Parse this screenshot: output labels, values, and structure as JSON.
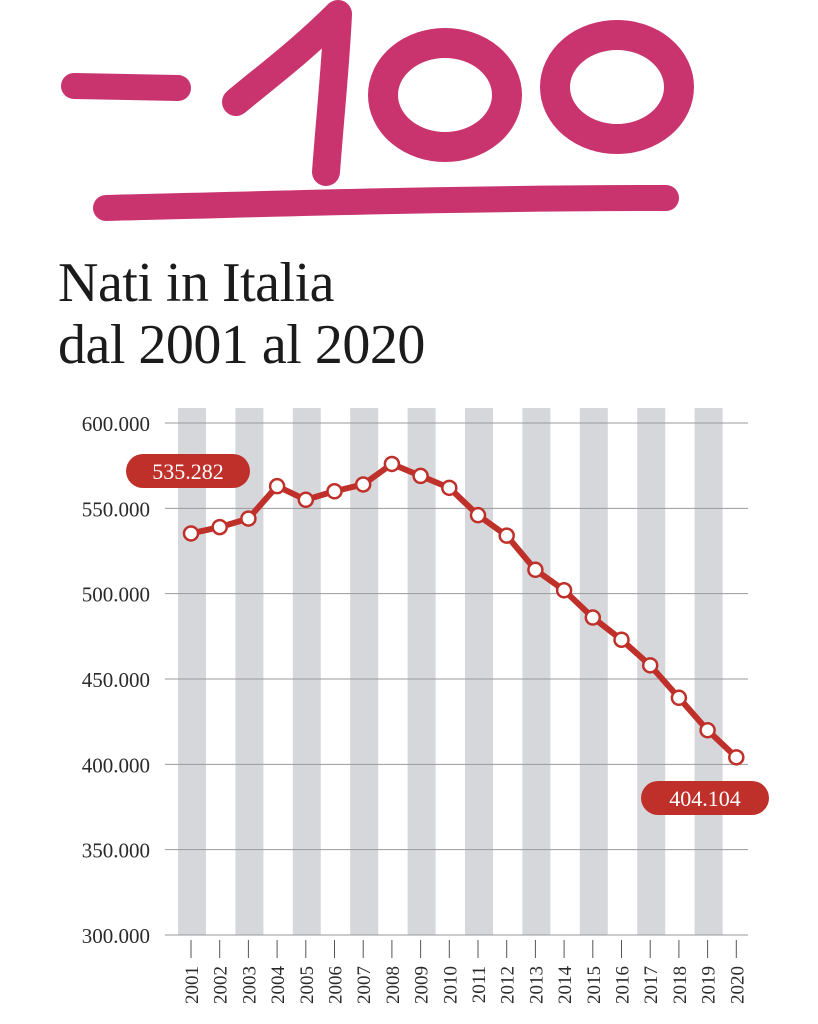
{
  "annotation": {
    "text": "-100",
    "color": "#c2185b"
  },
  "title": {
    "line1": "Nati in Italia",
    "line2": "dal 2001 al 2020"
  },
  "chart_data": {
    "type": "line",
    "title": "Nati in Italia dal 2001 al 2020",
    "xlabel": "",
    "ylabel": "",
    "x": [
      "2001",
      "2002",
      "2003",
      "2004",
      "2005",
      "2006",
      "2007",
      "2008",
      "2009",
      "2010",
      "2011",
      "2012",
      "2013",
      "2014",
      "2015",
      "2016",
      "2017",
      "2018",
      "2019",
      "2020"
    ],
    "series": [
      {
        "values": [
          535282,
          539000,
          544000,
          563000,
          555000,
          560000,
          564000,
          576000,
          569000,
          562000,
          546000,
          534000,
          514000,
          502000,
          486000,
          473000,
          458000,
          439000,
          420000,
          404104
        ]
      }
    ],
    "ylim": [
      300000,
      600000
    ],
    "yticks": [
      300000,
      350000,
      400000,
      450000,
      500000,
      550000,
      600000
    ],
    "ytick_labels": [
      "300.000",
      "350.000",
      "400.000",
      "450.000",
      "500.000",
      "550.000",
      "600.000"
    ],
    "annotations": [
      {
        "label": "535.282",
        "year": "2001"
      },
      {
        "label": "404.104",
        "year": "2020"
      }
    ],
    "grid": true,
    "alternating_column_bands": true,
    "colors": {
      "line": "#c0302a",
      "marker_fill": "#ffffff",
      "band": "#d6d7db",
      "grid": "#9a9a9a",
      "label_bg": "#c0302a",
      "label_text": "#ffffff",
      "axis_text": "#2a2a2a"
    }
  }
}
